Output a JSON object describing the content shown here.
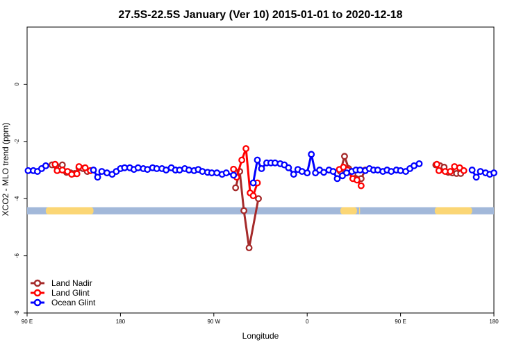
{
  "chart_data": {
    "type": "line",
    "title": "27.5S-22.5S January (Ver 10)   2015-01-01 to 2020-12-18",
    "xlabel": "Longitude",
    "ylabel": "XCO2 - MLO trend (ppm)",
    "xlim": [
      90,
      540
    ],
    "ylim": [
      -8,
      2
    ],
    "x_ticks": [
      {
        "value": 90,
        "label": "90 E"
      },
      {
        "value": 180,
        "label": "180"
      },
      {
        "value": 270,
        "label": "90 W"
      },
      {
        "value": 360,
        "label": "0"
      },
      {
        "value": 450,
        "label": "90 E"
      },
      {
        "value": 540,
        "label": "180"
      }
    ],
    "y_ticks": [
      {
        "value": 0,
        "label": "0"
      },
      {
        "value": -2,
        "label": "-2"
      },
      {
        "value": -4,
        "label": "-4"
      },
      {
        "value": -6,
        "label": "-6"
      },
      {
        "value": -8,
        "label": "-8"
      }
    ],
    "grid": false,
    "legend_position": "bottom-left",
    "band": {
      "ymin": -4.55,
      "ymax": -4.3,
      "color": "#a2b8d9",
      "land_color": "#fbd675",
      "land_ranges": [
        [
          116,
          153
        ],
        [
          108,
          154
        ],
        [
          392,
          408
        ],
        [
          410,
          411
        ],
        [
          483,
          519
        ]
      ]
    },
    "series": [
      {
        "name": "Land Nadir",
        "color": "#a52a2a",
        "points": [
          [
            114,
            -2.82
          ],
          [
            118,
            -2.85
          ],
          [
            124,
            -2.82
          ],
          [
            128,
            -3.08
          ],
          [
            132,
            -3.1
          ],
          [
            136,
            -3.12
          ],
          [
            140,
            -2.92
          ],
          [
            144,
            -2.95
          ],
          [
            148,
            -3.05
          ],
          [
            291,
            -3.62
          ],
          [
            295,
            -3.05
          ],
          [
            299,
            -4.42
          ],
          [
            304,
            -5.72
          ],
          [
            313,
            -4.0
          ],
          [
            392,
            -3.05
          ],
          [
            396,
            -2.52
          ],
          [
            400,
            -2.95
          ],
          [
            404,
            -3.15
          ],
          [
            412,
            -3.3
          ],
          [
            416,
            -3.0
          ],
          [
            484,
            -2.82
          ],
          [
            488,
            -2.85
          ],
          [
            492,
            -2.9
          ],
          [
            496,
            -3.08
          ],
          [
            500,
            -3.1
          ],
          [
            504,
            -3.12
          ],
          [
            508,
            -3.12
          ]
        ]
      },
      {
        "name": "Land Glint",
        "color": "#ff0000",
        "points": [
          [
            117,
            -2.8
          ],
          [
            119,
            -3.02
          ],
          [
            124,
            -3.0
          ],
          [
            129,
            -3.05
          ],
          [
            133,
            -3.15
          ],
          [
            138,
            -3.13
          ],
          [
            140,
            -2.88
          ],
          [
            146,
            -2.92
          ],
          [
            151,
            -3.02
          ],
          [
            289,
            -2.97
          ],
          [
            292,
            -3.25
          ],
          [
            297,
            -2.65
          ],
          [
            301,
            -2.25
          ],
          [
            305,
            -3.8
          ],
          [
            308,
            -3.9
          ],
          [
            312,
            -3.45
          ],
          [
            391,
            -2.98
          ],
          [
            395,
            -2.9
          ],
          [
            399,
            -3.0
          ],
          [
            404,
            -3.3
          ],
          [
            408,
            -3.35
          ],
          [
            412,
            -3.55
          ],
          [
            485,
            -2.8
          ],
          [
            487,
            -3.02
          ],
          [
            493,
            -3.05
          ],
          [
            498,
            -3.05
          ],
          [
            502,
            -2.88
          ],
          [
            507,
            -2.92
          ],
          [
            511,
            -3.02
          ]
        ]
      },
      {
        "name": "Ocean Glint",
        "color": "#0000ff",
        "points": [
          [
            91,
            -3.02
          ],
          [
            96,
            -3.02
          ],
          [
            100,
            -3.05
          ],
          [
            104,
            -2.95
          ],
          [
            108,
            -2.85
          ],
          [
            154,
            -3.0
          ],
          [
            158,
            -3.25
          ],
          [
            162,
            -3.05
          ],
          [
            167,
            -3.1
          ],
          [
            172,
            -3.15
          ],
          [
            176,
            -3.05
          ],
          [
            180,
            -2.95
          ],
          [
            184,
            -2.92
          ],
          [
            189,
            -2.92
          ],
          [
            193,
            -2.98
          ],
          [
            197,
            -2.92
          ],
          [
            202,
            -2.95
          ],
          [
            206,
            -2.98
          ],
          [
            211,
            -2.92
          ],
          [
            215,
            -2.95
          ],
          [
            220,
            -2.95
          ],
          [
            224,
            -3.0
          ],
          [
            229,
            -2.92
          ],
          [
            233,
            -3.0
          ],
          [
            237,
            -3.0
          ],
          [
            242,
            -2.95
          ],
          [
            246,
            -3.0
          ],
          [
            251,
            -3.02
          ],
          [
            255,
            -2.98
          ],
          [
            259,
            -3.05
          ],
          [
            264,
            -3.08
          ],
          [
            268,
            -3.1
          ],
          [
            273,
            -3.1
          ],
          [
            278,
            -3.15
          ],
          [
            282,
            -3.1
          ],
          [
            289,
            -3.18
          ],
          [
            308,
            -3.45
          ],
          [
            312,
            -2.65
          ],
          [
            316,
            -2.95
          ],
          [
            321,
            -2.75
          ],
          [
            325,
            -2.75
          ],
          [
            329,
            -2.75
          ],
          [
            334,
            -2.78
          ],
          [
            338,
            -2.82
          ],
          [
            342,
            -2.92
          ],
          [
            347,
            -3.15
          ],
          [
            351,
            -2.98
          ],
          [
            355,
            -3.05
          ],
          [
            360,
            -3.1
          ],
          [
            364,
            -2.45
          ],
          [
            368,
            -3.1
          ],
          [
            372,
            -3.0
          ],
          [
            376,
            -3.08
          ],
          [
            381,
            -3.0
          ],
          [
            385,
            -3.05
          ],
          [
            389,
            -3.3
          ],
          [
            394,
            -3.2
          ],
          [
            398,
            -3.1
          ],
          [
            403,
            -3.05
          ],
          [
            407,
            -3.0
          ],
          [
            411,
            -3.0
          ],
          [
            416,
            -3.02
          ],
          [
            420,
            -2.95
          ],
          [
            424,
            -3.0
          ],
          [
            428,
            -3.0
          ],
          [
            433,
            -3.05
          ],
          [
            437,
            -3.0
          ],
          [
            441,
            -3.05
          ],
          [
            446,
            -3.0
          ],
          [
            450,
            -3.02
          ],
          [
            455,
            -3.05
          ],
          [
            459,
            -2.95
          ],
          [
            463,
            -2.85
          ],
          [
            468,
            -2.78
          ],
          [
            519,
            -3.0
          ],
          [
            523,
            -3.25
          ],
          [
            527,
            -3.05
          ],
          [
            532,
            -3.1
          ],
          [
            536,
            -3.15
          ],
          [
            540,
            -3.1
          ]
        ]
      }
    ]
  }
}
